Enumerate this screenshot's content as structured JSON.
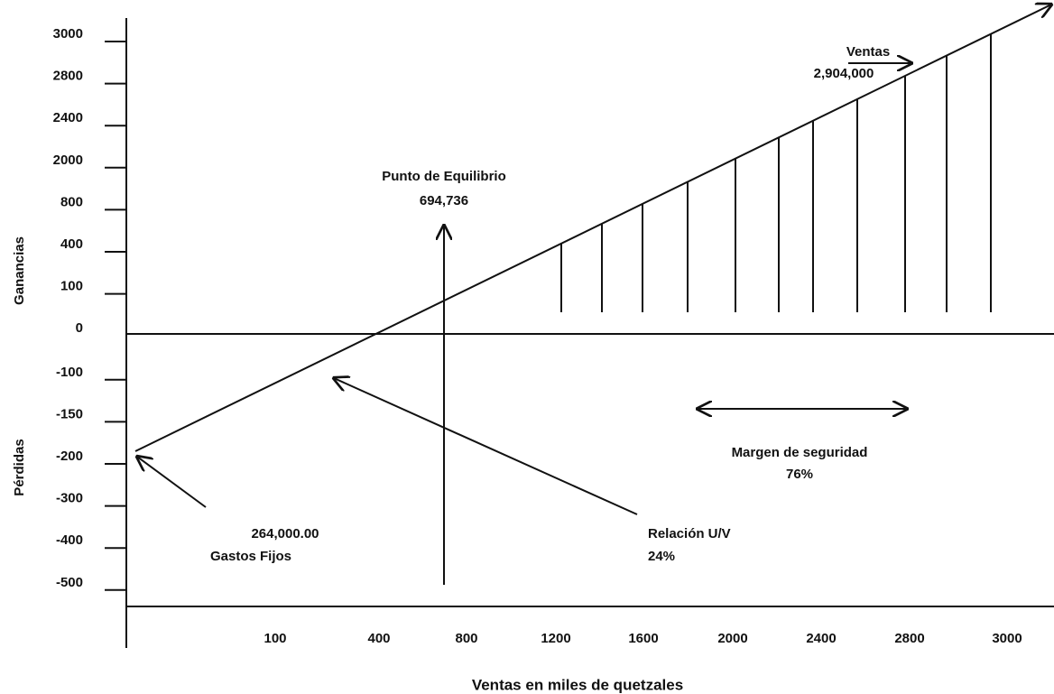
{
  "y_axis": {
    "labels_top": "Ganancias",
    "labels_bottom": "Pérdidas",
    "ticks": [
      "3000",
      "2800",
      "2400",
      "2000",
      "800",
      "400",
      "100",
      "0",
      "-100",
      "-150",
      "-200",
      "-300",
      "-400",
      "-500"
    ]
  },
  "x_axis": {
    "title": "Ventas en miles de quetzales",
    "ticks": [
      "100",
      "400",
      "800",
      "1200",
      "1600",
      "2000",
      "2400",
      "2800",
      "3000"
    ]
  },
  "annotations": {
    "ventas": {
      "label": "Ventas",
      "value": "2,904,000"
    },
    "punto_equilibrio": {
      "label": "Punto de Equilibrio",
      "value": "694,736"
    },
    "margen_seguridad": {
      "label": "Margen de seguridad",
      "value": "76%"
    },
    "gastos_fijos": {
      "value": "264,000.00",
      "label": "Gastos Fijos"
    },
    "relacion": {
      "label": "Relación U/V",
      "value": "24%"
    }
  }
}
